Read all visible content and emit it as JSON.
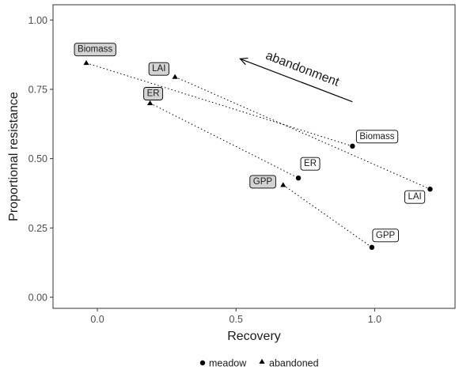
{
  "chart_data": {
    "type": "scatter",
    "title": "",
    "xlabel": "Recovery",
    "ylabel": "Proportional resistance",
    "xlim": [
      -0.16,
      1.29
    ],
    "ylim": [
      -0.04,
      1.055
    ],
    "x_ticks": [
      0.0,
      0.5,
      1.0
    ],
    "x_tick_labels": [
      "0.0",
      "0.5",
      "1.0"
    ],
    "y_ticks": [
      0.0,
      0.25,
      0.5,
      0.75,
      1.0
    ],
    "y_tick_labels": [
      "0.00",
      "0.25",
      "0.50",
      "0.75",
      "1.00"
    ],
    "grid": false,
    "legend_position": "bottom",
    "series": [
      {
        "name": "meadow",
        "marker": "circle",
        "points": [
          {
            "label": "Biomass",
            "x": 0.92,
            "y": 0.545
          },
          {
            "label": "LAI",
            "x": 1.2,
            "y": 0.39
          },
          {
            "label": "ER",
            "x": 0.725,
            "y": 0.43
          },
          {
            "label": "GPP",
            "x": 0.99,
            "y": 0.18
          }
        ]
      },
      {
        "name": "abandoned",
        "marker": "triangle",
        "points": [
          {
            "label": "Biomass",
            "x": -0.04,
            "y": 0.845
          },
          {
            "label": "LAI",
            "x": 0.28,
            "y": 0.795
          },
          {
            "label": "ER",
            "x": 0.19,
            "y": 0.7
          },
          {
            "label": "GPP",
            "x": 0.67,
            "y": 0.405
          }
        ]
      }
    ],
    "connections": [
      {
        "variable": "Biomass",
        "from": "abandoned",
        "to": "meadow"
      },
      {
        "variable": "LAI",
        "from": "abandoned",
        "to": "meadow"
      },
      {
        "variable": "ER",
        "from": "abandoned",
        "to": "meadow"
      },
      {
        "variable": "GPP",
        "from": "abandoned",
        "to": "meadow"
      }
    ],
    "annotation": {
      "text": "abandonment",
      "arrow_from": {
        "x": 0.92,
        "y": 0.705
      },
      "arrow_to": {
        "x": 0.515,
        "y": 0.86
      }
    },
    "colors": {
      "point": "#000000",
      "label_box_meadow": "#ffffff",
      "label_box_abandoned": "#d3d3d3",
      "axis": "#333333"
    }
  }
}
